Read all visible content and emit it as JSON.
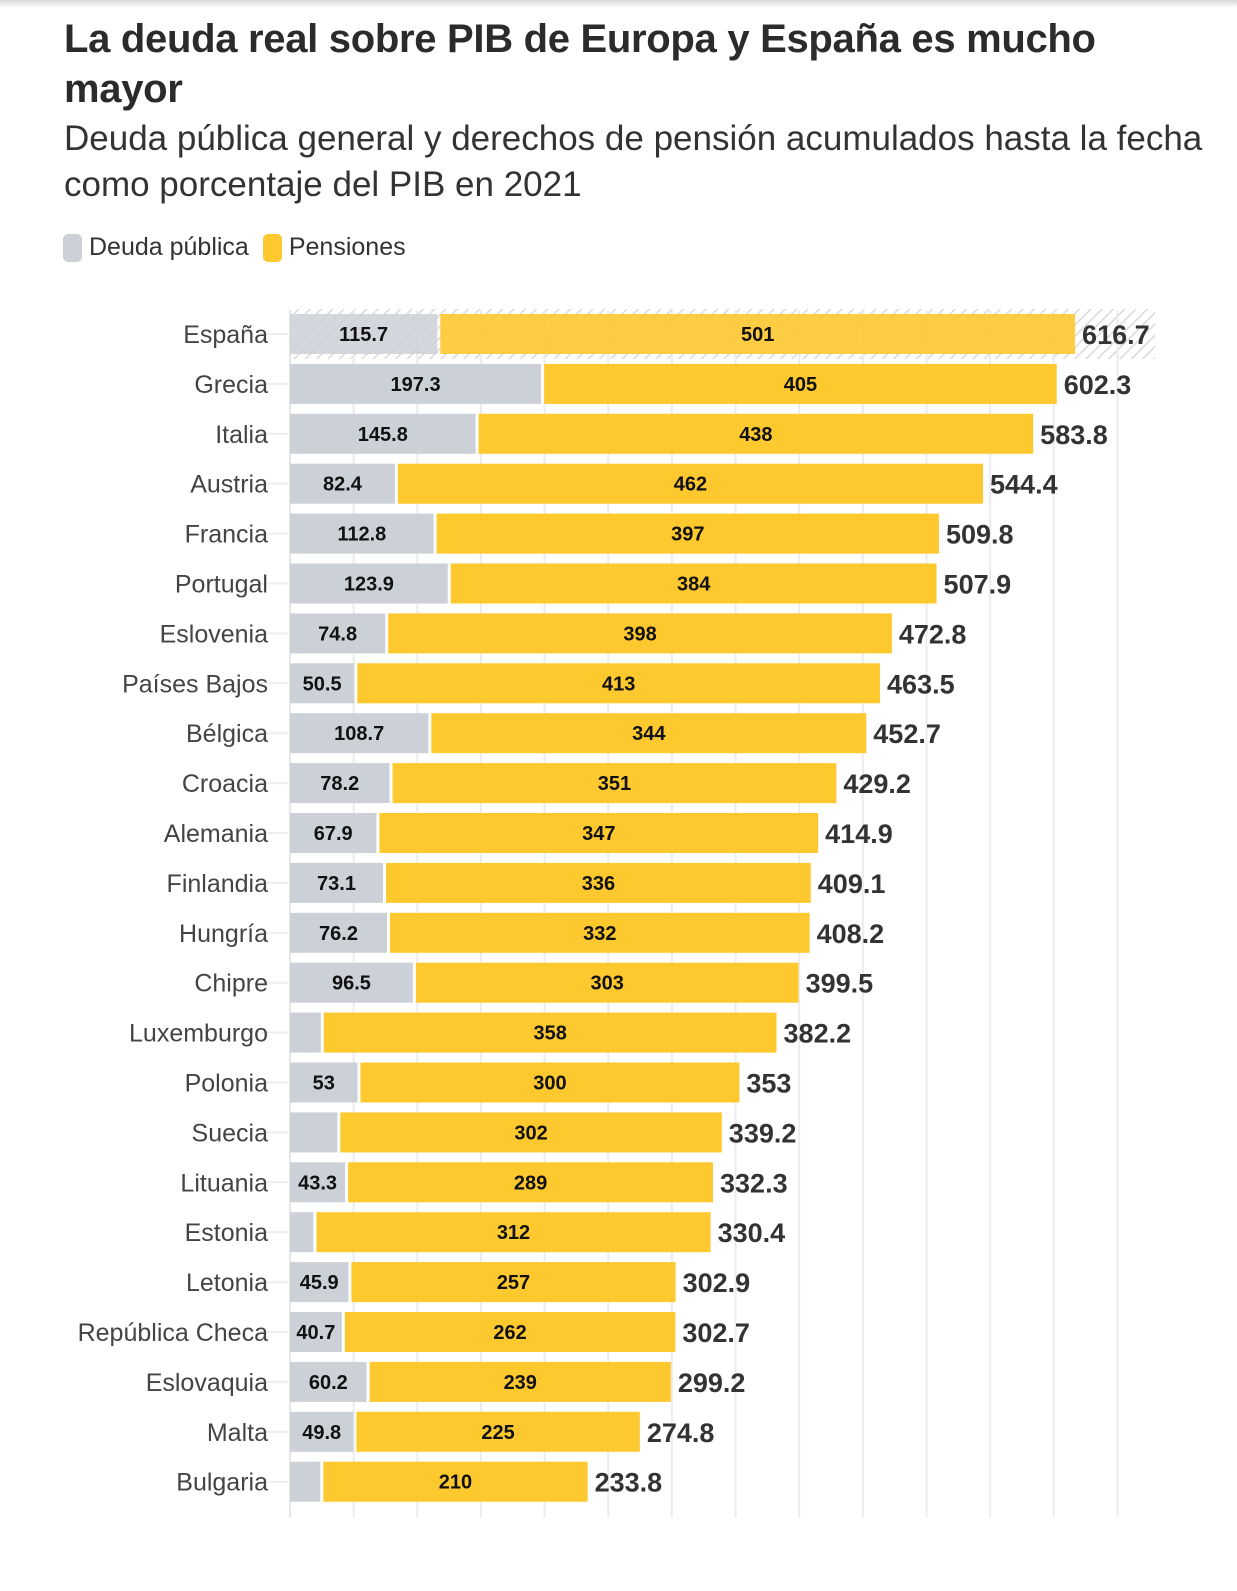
{
  "title": "La deuda real sobre PIB de Europa y España es mucho mayor",
  "subtitle": "Deuda pública general y derechos de pensión acumulados hasta la fecha como porcentaje del PIB en 2021",
  "legend": [
    {
      "label": "Deuda pública",
      "color": "#ccd1d8"
    },
    {
      "label": "Pensiones",
      "color": "#fec82f"
    }
  ],
  "chart_data": {
    "type": "bar",
    "orientation": "horizontal",
    "stacked": true,
    "title": "La deuda real sobre PIB de Europa y España es mucho mayor",
    "subtitle": "Deuda pública general y derechos de pensión acumulados hasta la fecha como porcentaje del PIB en 2021",
    "xlabel": "",
    "ylabel": "",
    "xlim": [
      0,
      650
    ],
    "grid": true,
    "grid_step": 50,
    "legend_position": "top-left",
    "highlight": "España",
    "categories": [
      "España",
      "Grecia",
      "Italia",
      "Austria",
      "Francia",
      "Portugal",
      "Eslovenia",
      "Países Bajos",
      "Bélgica",
      "Croacia",
      "Alemania",
      "Finlandia",
      "Hungría",
      "Chipre",
      "Luxemburgo",
      "Polonia",
      "Suecia",
      "Lituania",
      "Estonia",
      "Letonia",
      "República Checa",
      "Eslovaquia",
      "Malta",
      "Bulgaria"
    ],
    "series": [
      {
        "name": "Deuda pública",
        "color": "#ccd1d8",
        "values": [
          115.7,
          197.3,
          145.8,
          82.4,
          112.8,
          123.9,
          74.8,
          50.5,
          108.7,
          78.2,
          67.9,
          73.1,
          76.2,
          96.5,
          24.2,
          53,
          37.2,
          43.3,
          18.4,
          45.9,
          40.7,
          60.2,
          49.8,
          23.8
        ],
        "labels": [
          "115.7",
          "197.3",
          "145.8",
          "82.4",
          "112.8",
          "123.9",
          "74.8",
          "50.5",
          "108.7",
          "78.2",
          "67.9",
          "73.1",
          "76.2",
          "96.5",
          "",
          "53",
          "",
          "43.3",
          "",
          "45.9",
          "40.7",
          "60.2",
          "49.8",
          ""
        ]
      },
      {
        "name": "Pensiones",
        "color": "#fec82f",
        "values": [
          501,
          405,
          438,
          462,
          397,
          384,
          398,
          413,
          344,
          351,
          347,
          336,
          332,
          303,
          358,
          300,
          302,
          289,
          312,
          257,
          262,
          239,
          225,
          210
        ],
        "labels": [
          "501",
          "405",
          "438",
          "462",
          "397",
          "384",
          "398",
          "413",
          "344",
          "351",
          "347",
          "336",
          "332",
          "303",
          "358",
          "300",
          "302",
          "289",
          "312",
          "257",
          "262",
          "239",
          "225",
          "210"
        ]
      }
    ],
    "totals": [
      "616.7",
      "602.3",
      "583.8",
      "544.4",
      "509.8",
      "507.9",
      "472.8",
      "463.5",
      "452.7",
      "429.2",
      "414.9",
      "409.1",
      "408.2",
      "399.5",
      "382.2",
      "353",
      "339.2",
      "332.3",
      "330.4",
      "302.9",
      "302.7",
      "299.2",
      "274.8",
      "233.8"
    ]
  }
}
